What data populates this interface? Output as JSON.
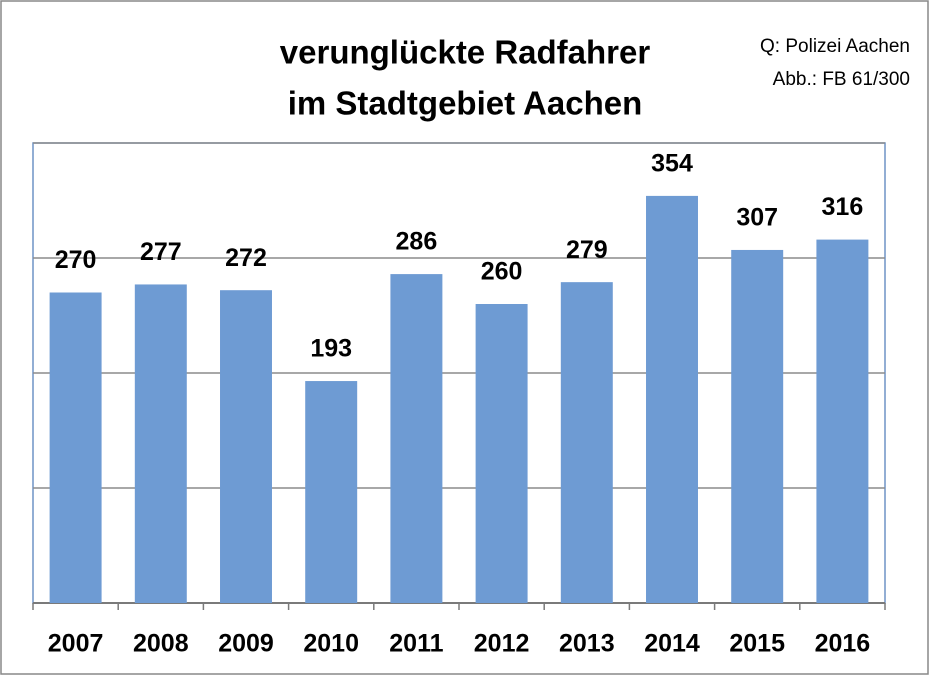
{
  "chart_data": {
    "type": "bar",
    "title": [
      "verunglückte Radfahrer",
      "im Stadtgebiet Aachen"
    ],
    "annotations": [
      "Q: Polizei Aachen",
      "Abb.: FB 61/300"
    ],
    "categories": [
      "2007",
      "2008",
      "2009",
      "2010",
      "2011",
      "2012",
      "2013",
      "2014",
      "2015",
      "2016"
    ],
    "values": [
      270,
      277,
      272,
      193,
      286,
      260,
      279,
      354,
      307,
      316
    ],
    "color": "#6e9bd3",
    "ylim": [
      0,
      400
    ],
    "yticks": [
      0,
      100,
      200,
      300,
      400
    ],
    "grid": true
  }
}
